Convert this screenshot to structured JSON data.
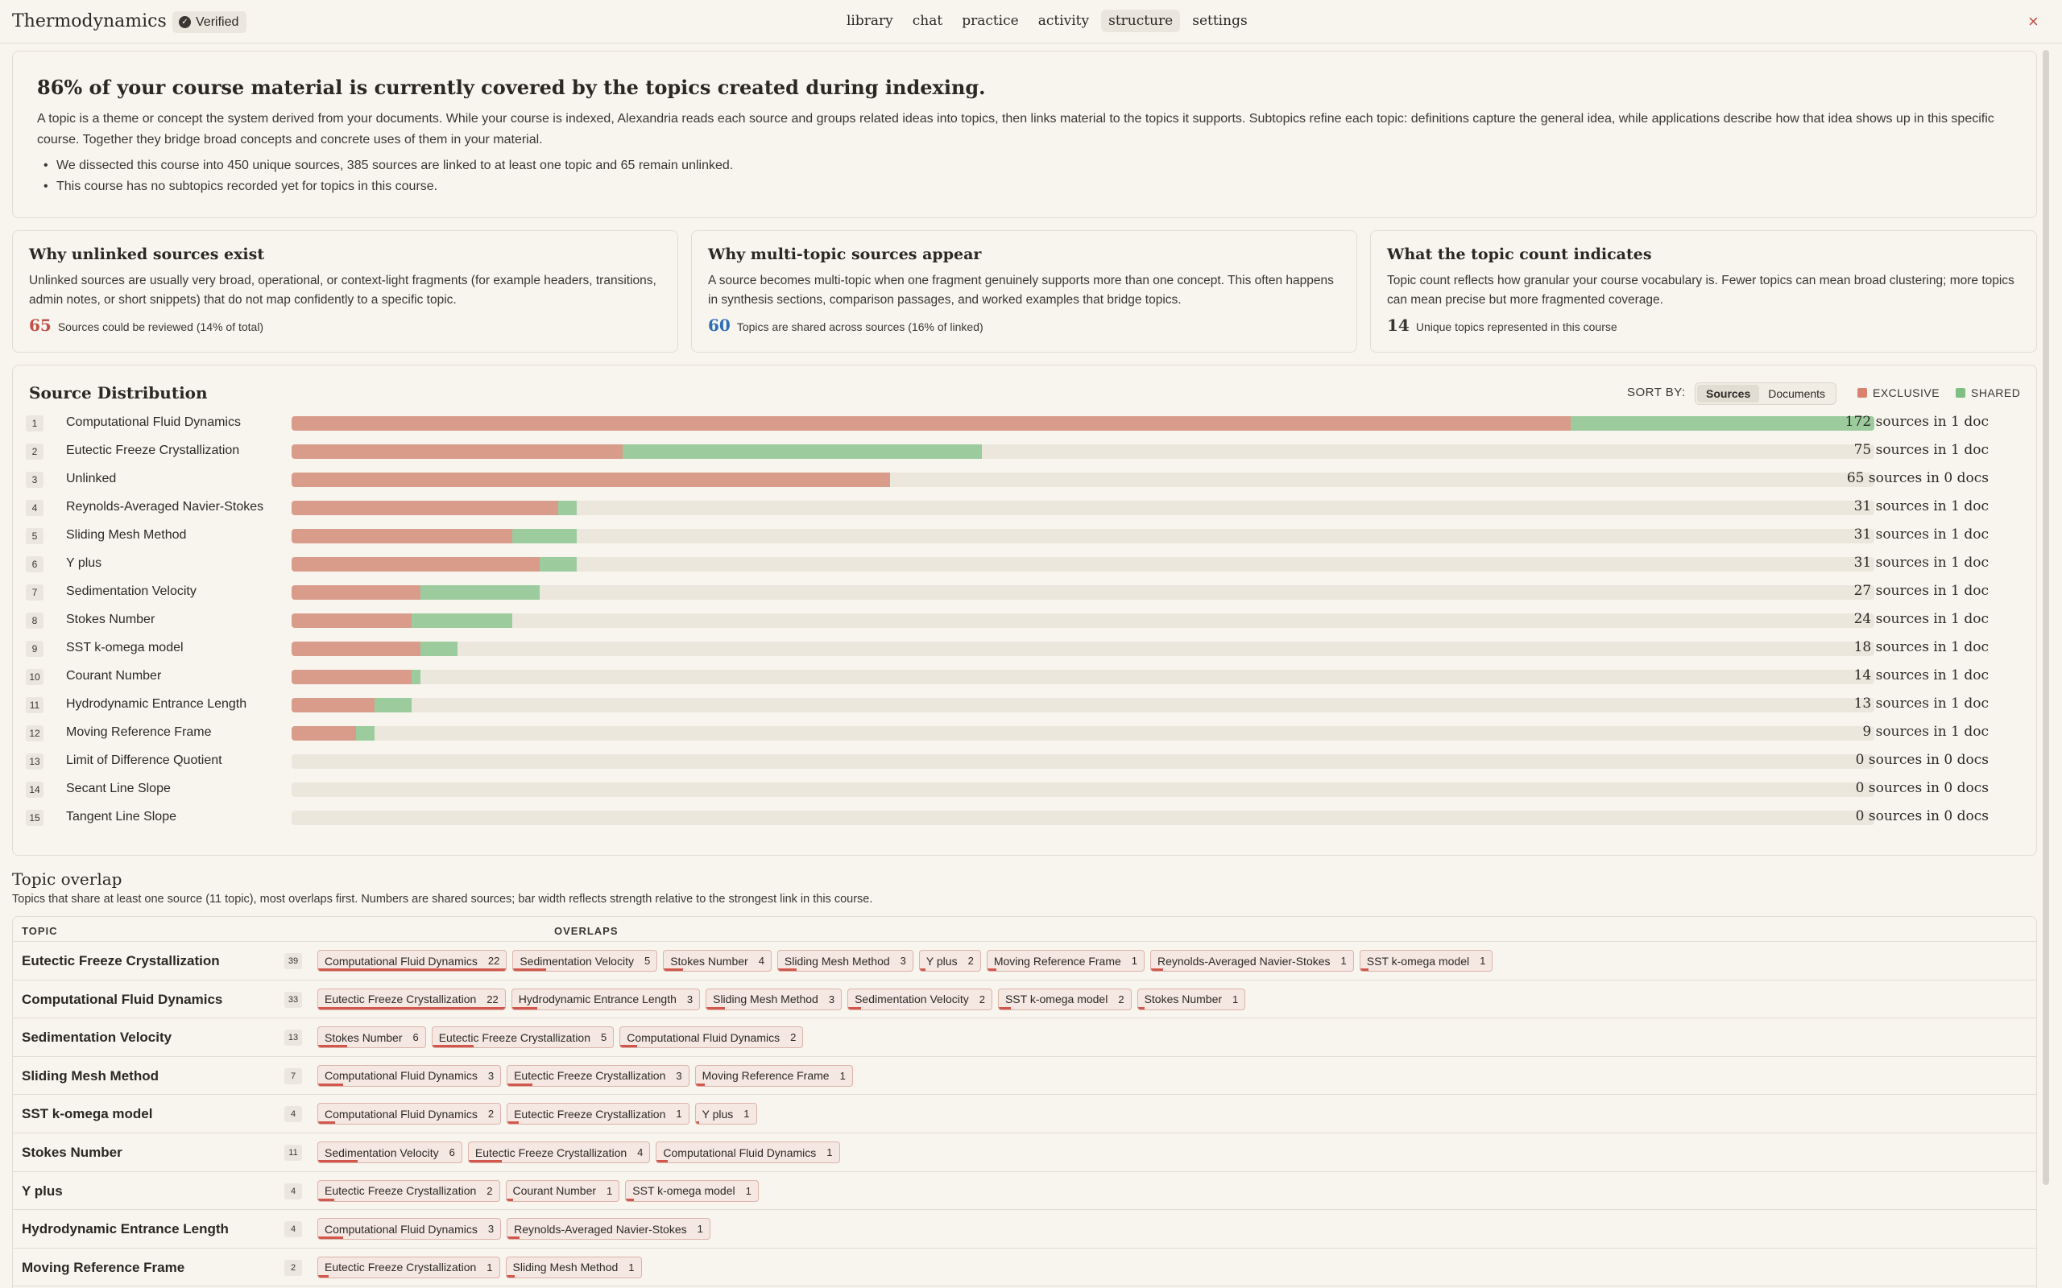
{
  "header": {
    "title": "Thermodynamics",
    "verified_label": "Verified",
    "tabs": [
      "library",
      "chat",
      "practice",
      "activity",
      "structure",
      "settings"
    ],
    "active_tab": "structure",
    "close_icon": "×"
  },
  "intro": {
    "headline": "86% of your course material is currently covered by the topics created during indexing.",
    "body": "A topic is a theme or concept the system derived from your documents. While your course is indexed, Alexandria reads each source and groups related ideas into topics, then links material to the topics it supports. Subtopics refine each topic: definitions capture the general idea, while applications describe how that idea shows up in this specific course. Together they bridge broad concepts and concrete uses of them in your material.",
    "bullets": [
      "We dissected this course into 450 unique sources, 385 sources are linked to at least one topic and 65 remain unlinked.",
      "This course has no subtopics recorded yet for topics in this course."
    ]
  },
  "info_cards": [
    {
      "title": "Why unlinked sources exist",
      "body": "Unlinked sources are usually very broad, operational, or context-light fragments (for example headers, transitions, admin notes, or short snippets) that do not map confidently to a specific topic.",
      "stat_value": "65",
      "stat_label": "Sources could be reviewed (14% of total)",
      "stat_color": "#c0504a"
    },
    {
      "title": "Why multi-topic sources appear",
      "body": "A source becomes multi-topic when one fragment genuinely supports more than one concept. This often happens in synthesis sections, comparison passages, and worked examples that bridge topics.",
      "stat_value": "60",
      "stat_label": "Topics are shared across sources (16% of linked)",
      "stat_color": "#2f6eb5"
    },
    {
      "title": "What the topic count indicates",
      "body": "Topic count reflects how granular your course vocabulary is. Fewer topics can mean broad clustering; more topics can mean precise but more fragmented coverage.",
      "stat_value": "14",
      "stat_label": "Unique topics represented in this course",
      "stat_color": "#2b2824"
    }
  ],
  "distribution": {
    "title": "Source Distribution",
    "sort_label": "SORT BY:",
    "sort_options": [
      "Sources",
      "Documents"
    ],
    "active_sort": "Sources",
    "legend": [
      {
        "label": "EXCLUSIVE",
        "color": "#d9826f"
      },
      {
        "label": "SHARED",
        "color": "#7fbf83"
      }
    ],
    "max_sources": 172,
    "rows": [
      {
        "rank": "1",
        "name": "Computational Fluid Dynamics",
        "total": 172,
        "exclusive": 139,
        "count_text": "172 sources in 1 doc"
      },
      {
        "rank": "2",
        "name": "Eutectic Freeze Crystallization",
        "total": 75,
        "exclusive": 36,
        "count_text": "75 sources in 1 doc"
      },
      {
        "rank": "3",
        "name": "Unlinked",
        "total": 65,
        "exclusive": 65,
        "count_text": "65 sources in 0 docs"
      },
      {
        "rank": "4",
        "name": "Reynolds-Averaged Navier-Stokes",
        "total": 31,
        "exclusive": 29,
        "count_text": "31 sources in 1 doc"
      },
      {
        "rank": "5",
        "name": "Sliding Mesh Method",
        "total": 31,
        "exclusive": 24,
        "count_text": "31 sources in 1 doc"
      },
      {
        "rank": "6",
        "name": "Y plus",
        "total": 31,
        "exclusive": 27,
        "count_text": "31 sources in 1 doc"
      },
      {
        "rank": "7",
        "name": "Sedimentation Velocity",
        "total": 27,
        "exclusive": 14,
        "count_text": "27 sources in 1 doc"
      },
      {
        "rank": "8",
        "name": "Stokes Number",
        "total": 24,
        "exclusive": 13,
        "count_text": "24 sources in 1 doc"
      },
      {
        "rank": "9",
        "name": "SST k-omega model",
        "total": 18,
        "exclusive": 14,
        "count_text": "18 sources in 1 doc"
      },
      {
        "rank": "10",
        "name": "Courant Number",
        "total": 14,
        "exclusive": 13,
        "count_text": "14 sources in 1 doc"
      },
      {
        "rank": "11",
        "name": "Hydrodynamic Entrance Length",
        "total": 13,
        "exclusive": 9,
        "count_text": "13 sources in 1 doc"
      },
      {
        "rank": "12",
        "name": "Moving Reference Frame",
        "total": 9,
        "exclusive": 7,
        "count_text": "9 sources in 1 doc"
      },
      {
        "rank": "13",
        "name": "Limit of Difference Quotient",
        "total": 0,
        "exclusive": 0,
        "count_text": "0 sources in 0 docs"
      },
      {
        "rank": "14",
        "name": "Secant Line Slope",
        "total": 0,
        "exclusive": 0,
        "count_text": "0 sources in 0 docs"
      },
      {
        "rank": "15",
        "name": "Tangent Line Slope",
        "total": 0,
        "exclusive": 0,
        "count_text": "0 sources in 0 docs"
      }
    ]
  },
  "overlap": {
    "title": "Topic overlap",
    "subtitle": "Topics that share at least one source (11 topic), most overlaps first. Numbers are shared sources; bar width reflects strength relative to the strongest link in this course.",
    "col_topic": "TOPIC",
    "col_overlaps": "OVERLAPS",
    "max_link": 22,
    "rows": [
      {
        "topic": "Eutectic Freeze Crystallization",
        "count": "39",
        "chips": [
          {
            "name": "Computational Fluid Dynamics",
            "n": 22
          },
          {
            "name": "Sedimentation Velocity",
            "n": 5
          },
          {
            "name": "Stokes Number",
            "n": 4
          },
          {
            "name": "Sliding Mesh Method",
            "n": 3
          },
          {
            "name": "Y plus",
            "n": 2
          },
          {
            "name": "Moving Reference Frame",
            "n": 1
          },
          {
            "name": "Reynolds-Averaged Navier-Stokes",
            "n": 1
          },
          {
            "name": "SST k-omega model",
            "n": 1
          }
        ]
      },
      {
        "topic": "Computational Fluid Dynamics",
        "count": "33",
        "chips": [
          {
            "name": "Eutectic Freeze Crystallization",
            "n": 22
          },
          {
            "name": "Hydrodynamic Entrance Length",
            "n": 3
          },
          {
            "name": "Sliding Mesh Method",
            "n": 3
          },
          {
            "name": "Sedimentation Velocity",
            "n": 2
          },
          {
            "name": "SST k-omega model",
            "n": 2
          },
          {
            "name": "Stokes Number",
            "n": 1
          }
        ]
      },
      {
        "topic": "Sedimentation Velocity",
        "count": "13",
        "chips": [
          {
            "name": "Stokes Number",
            "n": 6
          },
          {
            "name": "Eutectic Freeze Crystallization",
            "n": 5
          },
          {
            "name": "Computational Fluid Dynamics",
            "n": 2
          }
        ]
      },
      {
        "topic": "Sliding Mesh Method",
        "count": "7",
        "chips": [
          {
            "name": "Computational Fluid Dynamics",
            "n": 3
          },
          {
            "name": "Eutectic Freeze Crystallization",
            "n": 3
          },
          {
            "name": "Moving Reference Frame",
            "n": 1
          }
        ]
      },
      {
        "topic": "SST k-omega model",
        "count": "4",
        "chips": [
          {
            "name": "Computational Fluid Dynamics",
            "n": 2
          },
          {
            "name": "Eutectic Freeze Crystallization",
            "n": 1
          },
          {
            "name": "Y plus",
            "n": 1
          }
        ]
      },
      {
        "topic": "Stokes Number",
        "count": "11",
        "chips": [
          {
            "name": "Sedimentation Velocity",
            "n": 6
          },
          {
            "name": "Eutectic Freeze Crystallization",
            "n": 4
          },
          {
            "name": "Computational Fluid Dynamics",
            "n": 1
          }
        ]
      },
      {
        "topic": "Y plus",
        "count": "4",
        "chips": [
          {
            "name": "Eutectic Freeze Crystallization",
            "n": 2
          },
          {
            "name": "Courant Number",
            "n": 1
          },
          {
            "name": "SST k-omega model",
            "n": 1
          }
        ]
      },
      {
        "topic": "Hydrodynamic Entrance Length",
        "count": "4",
        "chips": [
          {
            "name": "Computational Fluid Dynamics",
            "n": 3
          },
          {
            "name": "Reynolds-Averaged Navier-Stokes",
            "n": 1
          }
        ]
      },
      {
        "topic": "Moving Reference Frame",
        "count": "2",
        "chips": [
          {
            "name": "Eutectic Freeze Crystallization",
            "n": 1
          },
          {
            "name": "Sliding Mesh Method",
            "n": 1
          }
        ]
      }
    ]
  }
}
